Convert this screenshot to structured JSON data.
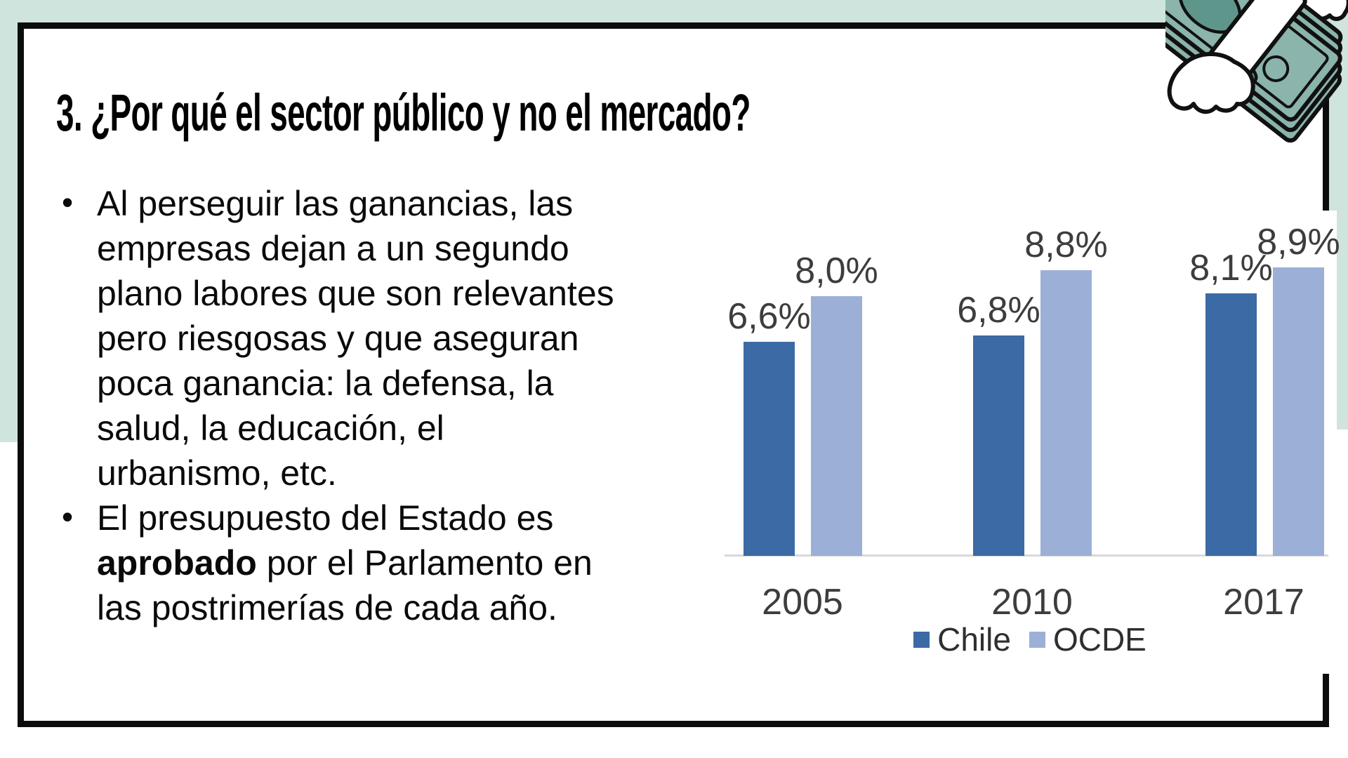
{
  "slide": {
    "title": "3. ¿Por qué el sector público y no el mercado?",
    "bullets": [
      {
        "text": "Al perseguir las ganancias, las\nempresas dejan a un segundo\nplano labores que son relevantes\npero riesgosas y que aseguran\npoca ganancia: la defensa, la\nsalud, la educación, el\nurbanismo, etc."
      },
      {
        "text_before_bold": "El presupuesto del Estado es\n",
        "text_bold": "aprobado",
        "text_after_bold": " por el Parlamento en\nlas postrimerías de cada año."
      }
    ],
    "background_color": "#cfe4dd",
    "frame_border_color": "#0c0c0c"
  },
  "illustration": {
    "name": "flying-money",
    "bill_color": "#8ab4ac",
    "bill_dark_color": "#5f968c",
    "outline_color": "#111111",
    "wing_color": "#ffffff"
  },
  "chart_data": {
    "type": "bar",
    "categories": [
      "2005",
      "2010",
      "2017"
    ],
    "series": [
      {
        "name": "Chile",
        "color": "#3b6aa5",
        "values": [
          6.6,
          6.8,
          8.1
        ],
        "labels": [
          "6,6%",
          "6,8%",
          "8,1%"
        ]
      },
      {
        "name": "OCDE",
        "color": "#9cafd6",
        "values": [
          8.0,
          8.8,
          8.9
        ],
        "labels": [
          "8,0%",
          "8,8%",
          "8,9%"
        ]
      }
    ],
    "value_format": "percent with comma decimal",
    "ylim": [
      0,
      10
    ],
    "grid": false,
    "legend_position": "bottom",
    "axis_line_color": "#d9d9d9",
    "label_text_color": "#3d3d3d"
  }
}
